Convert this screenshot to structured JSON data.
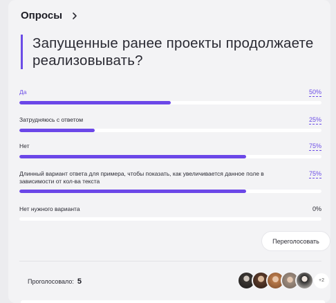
{
  "poll": {
    "section_title": "Опросы",
    "question": "Запущенные ранее проекты продолжаете реализовывать?",
    "options": [
      {
        "label": "Да",
        "percent_label": "50%",
        "percent": 50,
        "accent": true,
        "dashed": true
      },
      {
        "label": "Затрудняюсь с ответом",
        "percent_label": "25%",
        "percent": 25,
        "accent": false,
        "dashed": true
      },
      {
        "label": "Нет",
        "percent_label": "75%",
        "percent": 75,
        "accent": false,
        "dashed": true
      },
      {
        "label": "Длинный вариант ответа для примера, чтобы показать, как увеличивается данное поле в зависимости от кол-ва текста",
        "percent_label": "75%",
        "percent": 75,
        "accent": false,
        "dashed": true
      },
      {
        "label": "Нет нужного варианта",
        "percent_label": "0%",
        "percent": 0,
        "accent": false,
        "dashed": false
      }
    ],
    "revote_label": "Переголосовать",
    "voted_label": "Проголосовало:",
    "voted_count": "5",
    "more_voters": "+2"
  },
  "colors": {
    "accent": "#6b47e8",
    "card_background": "#f3f3f5",
    "bar_track": "#ffffff"
  }
}
